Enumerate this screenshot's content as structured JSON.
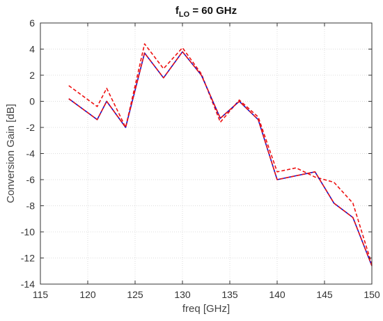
{
  "chart_data": {
    "type": "line",
    "title": {
      "main": "f",
      "subscript": "LO",
      "rest": " = 60 GHz"
    },
    "xlabel": "freq [GHz]",
    "ylabel": "Conversion Gain [dB]",
    "xlim": [
      115,
      150
    ],
    "ylim": [
      -14,
      6
    ],
    "xticks": [
      115,
      120,
      125,
      130,
      135,
      140,
      145,
      150
    ],
    "yticks": [
      -14,
      -12,
      -10,
      -8,
      -6,
      -4,
      -2,
      0,
      2,
      4,
      6
    ],
    "grid": true,
    "legend": "none",
    "series": [
      {
        "color": "#ee1111",
        "style": "dashed",
        "points": [
          [
            118,
            1.2
          ],
          [
            121,
            -0.4
          ],
          [
            122,
            1.0
          ],
          [
            124,
            -2.0
          ],
          [
            126,
            4.4
          ],
          [
            128,
            2.5
          ],
          [
            130,
            4.1
          ],
          [
            132,
            2.1
          ],
          [
            134,
            -1.6
          ],
          [
            136,
            0.1
          ],
          [
            138,
            -1.2
          ],
          [
            140,
            -5.4
          ],
          [
            142,
            -5.1
          ],
          [
            144,
            -5.8
          ],
          [
            146,
            -6.2
          ],
          [
            148,
            -7.8
          ],
          [
            150,
            -12.5
          ]
        ]
      },
      {
        "color": "#1111cc",
        "style": "solid",
        "points": [
          [
            118,
            0.2
          ],
          [
            121,
            -1.4
          ],
          [
            122,
            0.0
          ],
          [
            124,
            -2.0
          ],
          [
            126,
            3.7
          ],
          [
            128,
            1.8
          ],
          [
            130,
            3.8
          ],
          [
            132,
            2.0
          ],
          [
            134,
            -1.3
          ],
          [
            136,
            0.0
          ],
          [
            138,
            -1.4
          ],
          [
            140,
            -6.0
          ],
          [
            142,
            -5.7
          ],
          [
            144,
            -5.4
          ],
          [
            146,
            -7.8
          ],
          [
            148,
            -8.9
          ],
          [
            150,
            -12.6
          ]
        ]
      },
      {
        "color": "#ee1111",
        "style": "dashed",
        "points": [
          [
            118,
            0.2
          ],
          [
            121,
            -1.4
          ],
          [
            122,
            0.0
          ],
          [
            124,
            -2.0
          ],
          [
            126,
            3.7
          ],
          [
            128,
            1.8
          ],
          [
            130,
            3.8
          ],
          [
            132,
            2.0
          ],
          [
            134,
            -1.3
          ],
          [
            136,
            0.0
          ],
          [
            138,
            -1.4
          ],
          [
            140,
            -6.0
          ],
          [
            142,
            -5.7
          ],
          [
            144,
            -5.4
          ],
          [
            146,
            -7.8
          ],
          [
            148,
            -8.9
          ],
          [
            150,
            -12.6
          ]
        ]
      }
    ]
  }
}
